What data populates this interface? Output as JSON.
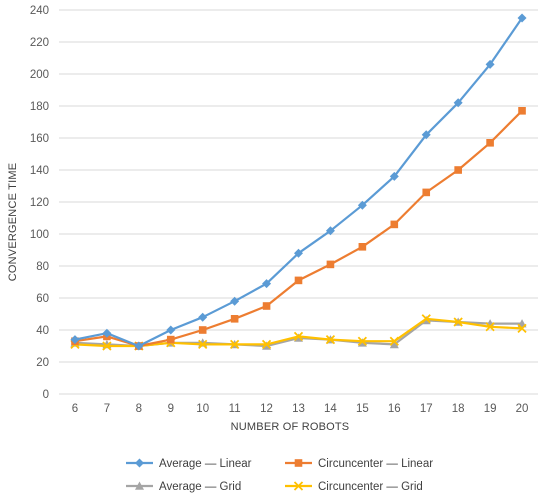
{
  "chart_data": {
    "type": "line",
    "title": "",
    "xlabel": "NUMBER OF ROBOTS",
    "ylabel": "CONVERGENCE TIME",
    "categories": [
      "6",
      "7",
      "8",
      "9",
      "10",
      "11",
      "12",
      "13",
      "14",
      "15",
      "16",
      "17",
      "18",
      "19",
      "20"
    ],
    "ylim": [
      0,
      240
    ],
    "yticks": [
      0,
      20,
      40,
      60,
      80,
      100,
      120,
      140,
      160,
      180,
      200,
      220,
      240
    ],
    "grid": "horizontal",
    "legend_position": "bottom",
    "series": [
      {
        "name": "Average — Linear",
        "color": "#5b9bd5",
        "marker": "diamond",
        "values": [
          34,
          38,
          30,
          40,
          48,
          58,
          69,
          88,
          102,
          118,
          136,
          162,
          182,
          206,
          235
        ]
      },
      {
        "name": "Circuncenter — Linear",
        "color": "#ed7d31",
        "marker": "square",
        "values": [
          33,
          36,
          30,
          34,
          40,
          47,
          55,
          71,
          81,
          92,
          106,
          126,
          140,
          157,
          177
        ]
      },
      {
        "name": "Average — Grid",
        "color": "#a5a5a5",
        "marker": "triangle",
        "values": [
          32,
          31,
          30,
          32,
          32,
          31,
          30,
          35,
          34,
          32,
          31,
          46,
          45,
          44,
          44
        ]
      },
      {
        "name": "Circuncenter — Grid",
        "color": "#ffc000",
        "marker": "x",
        "values": [
          31,
          30,
          30,
          32,
          31,
          31,
          31,
          36,
          34,
          33,
          33,
          47,
          45,
          42,
          41
        ]
      }
    ]
  }
}
